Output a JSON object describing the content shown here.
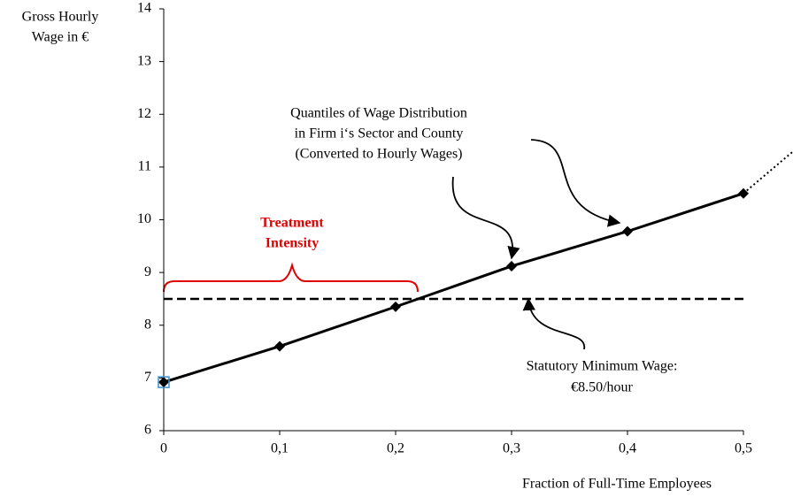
{
  "chart_data": {
    "type": "line",
    "ylabel": [
      "Gross Hourly",
      "Wage in €"
    ],
    "xlabel": "Fraction of Full-Time Employees",
    "x": [
      0,
      0.1,
      0.2,
      0.3,
      0.4,
      0.5
    ],
    "series": [
      {
        "color": "#000000",
        "values": [
          6.92,
          7.6,
          8.35,
          9.12,
          9.78,
          10.5
        ]
      }
    ],
    "projection": {
      "x": [
        0.5,
        0.543
      ],
      "values": [
        10.5,
        11.3
      ],
      "style": "dotted",
      "color": "#000000"
    },
    "reference_line": {
      "value": 8.5,
      "style": "dashed",
      "color": "#000000",
      "lines": [
        "Statutory Minimum Wage:",
        "€8.50/hour"
      ]
    },
    "annotations": [
      {
        "lines": [
          "Quantiles of Wage Distribution",
          "in Firm i‘s Sector and County",
          "(Converted to Hourly Wages)"
        ],
        "color": "#000000"
      },
      {
        "lines": [
          "Treatment",
          "Intensity"
        ],
        "color": "#e00000"
      }
    ],
    "xlim": [
      0,
      0.5
    ],
    "ylim": [
      6,
      14
    ],
    "xticks": [
      0,
      {
        "value": 0.1,
        "label": "0,1"
      },
      {
        "value": 0.2,
        "label": "0,2"
      },
      {
        "value": 0.3,
        "label": "0,3"
      },
      {
        "value": 0.4,
        "label": "0,4"
      },
      {
        "value": 0.5,
        "label": "0,5"
      }
    ],
    "yticks": [
      6,
      7,
      8,
      9,
      10,
      11,
      12,
      13,
      14
    ],
    "grid": false
  }
}
